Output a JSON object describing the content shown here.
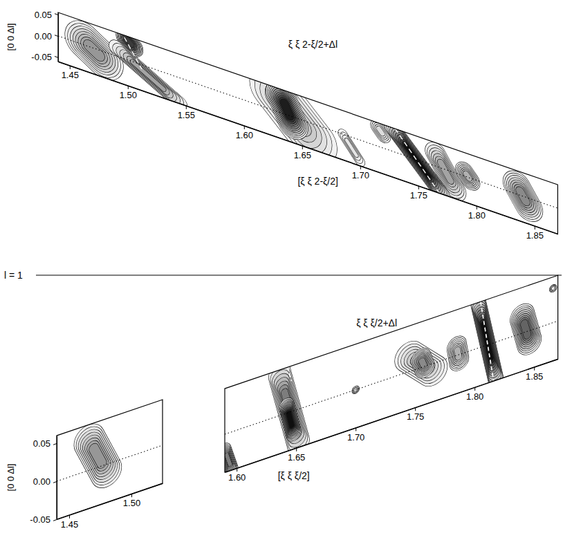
{
  "figure": {
    "label": "l = 1"
  },
  "chart_data": [
    {
      "type": "contour",
      "title": "ξ ξ 2-ξ/2+Δl",
      "x_label": "[ξ ξ 2-ξ/2]",
      "y_label": "[0 0 Δl]",
      "xlim": [
        1.44,
        1.87
      ],
      "ylim": [
        -0.06,
        0.055
      ],
      "xticks": [
        1.45,
        {
          "value": 1.5,
          "label": "1.50"
        },
        1.55,
        {
          "value": 1.6,
          "label": "1.60"
        },
        1.65,
        {
          "value": 1.7,
          "label": "1.70"
        },
        1.75,
        {
          "value": 1.8,
          "label": "1.80"
        },
        1.85
      ],
      "yticks": [
        -0.05,
        {
          "value": 0,
          "label": "0.00"
        },
        0.05
      ],
      "features": [
        {
          "xi": [
            1.462,
            1.48
          ],
          "dl": [
            0.01,
            -0.02
          ],
          "half_width": 0.016,
          "intensity": 0.5
        },
        {
          "xi": [
            1.498,
            1.505
          ],
          "dl": [
            0.05,
            0.035
          ],
          "half_width": 0.008,
          "intensity": 0.85
        },
        {
          "xi": [
            1.49,
            1.545
          ],
          "dl": [
            0.02,
            -0.06
          ],
          "half_width": 0.006,
          "intensity": 0.45
        },
        {
          "xi": [
            1.625,
            1.66
          ],
          "dl": [
            0.05,
            -0.04
          ],
          "half_width": 0.02,
          "intensity": 0.35
        },
        {
          "xi": [
            1.632,
            1.642
          ],
          "dl": [
            0.04,
            -0.015
          ],
          "half_width": 0.013,
          "intensity": 0.95
        },
        {
          "xi": [
            1.685,
            1.7
          ],
          "dl": [
            0.0,
            -0.05
          ],
          "half_width": 0.004,
          "intensity": 0.15
        },
        {
          "xi": [
            1.715,
            1.72
          ],
          "dl": [
            0.045,
            0.03
          ],
          "half_width": 0.006,
          "intensity": 0.2
        },
        {
          "xi": [
            1.765,
            1.782
          ],
          "dl": [
            0.03,
            -0.04
          ],
          "half_width": 0.009,
          "intensity": 0.45
        },
        {
          "xi": [
            1.728,
            1.77
          ],
          "dl": [
            0.055,
            -0.06
          ],
          "half_width": 0.007,
          "intensity": 1.0
        },
        {
          "xi": [
            1.79,
            1.795
          ],
          "dl": [
            0.01,
            -0.005
          ],
          "half_width": 0.008,
          "intensity": 0.4
        },
        {
          "xi": [
            1.835,
            1.845
          ],
          "dl": [
            0.02,
            -0.02
          ],
          "half_width": 0.012,
          "intensity": 0.55
        }
      ],
      "lines": [
        {
          "xi": [
            1.44,
            1.87
          ],
          "dl": [
            0,
            0
          ],
          "line_style": "dotted",
          "color": "#000000"
        },
        {
          "xi": [
            1.497,
            1.512
          ],
          "dl": [
            0.05,
            -0.01
          ],
          "line_style": "dashed",
          "color": "#ffffff"
        },
        {
          "xi": [
            1.73,
            1.768
          ],
          "dl": [
            0.055,
            -0.06
          ],
          "line_style": "dashed",
          "color": "#ffffff"
        }
      ]
    },
    {
      "type": "contour",
      "title": "ξ ξ ξ/2+Δl",
      "x_label": "[ξ ξ ξ/2]",
      "xlim": [
        1.59,
        1.87
      ],
      "ylim": [
        -0.05,
        0.06
      ],
      "tick_labels": "x",
      "xticks": [
        {
          "value": 1.6,
          "label": "1.60"
        },
        1.65,
        {
          "value": 1.7,
          "label": "1.70"
        },
        1.75,
        {
          "value": 1.8,
          "label": "1.80"
        },
        1.85
      ],
      "features": [
        {
          "xi": [
            1.59,
            1.596
          ],
          "dl": [
            -0.02,
            -0.05
          ],
          "half_width": 0.005,
          "intensity": 0.6
        },
        {
          "xi": [
            1.636,
            1.652
          ],
          "dl": [
            0.055,
            -0.045
          ],
          "half_width": 0.009,
          "intensity": 0.6
        },
        {
          "xi": [
            1.642,
            1.648
          ],
          "dl": [
            0.01,
            -0.03
          ],
          "half_width": 0.006,
          "intensity": 1.0
        },
        {
          "xi": [
            1.7,
            1.7
          ],
          "dl": [
            0.0,
            0.0
          ],
          "half_width": 0.003,
          "intensity": 0.1
        },
        {
          "xi": [
            1.745,
            1.765
          ],
          "dl": [
            0.02,
            -0.01
          ],
          "half_width": 0.012,
          "intensity": 0.35
        },
        {
          "xi": [
            1.755,
            1.758
          ],
          "dl": [
            0.012,
            -0.002
          ],
          "half_width": 0.008,
          "intensity": 0.55
        },
        {
          "xi": [
            1.785,
            1.787
          ],
          "dl": [
            0.012,
            -0.008
          ],
          "half_width": 0.008,
          "intensity": 0.4
        },
        {
          "xi": [
            1.803,
            1.818
          ],
          "dl": [
            0.06,
            -0.05
          ],
          "half_width": 0.006,
          "intensity": 1.0
        },
        {
          "xi": [
            1.84,
            1.846
          ],
          "dl": [
            0.022,
            -0.015
          ],
          "half_width": 0.01,
          "intensity": 0.7
        },
        {
          "xi": [
            1.866,
            1.866
          ],
          "dl": [
            0.045,
            0.045
          ],
          "half_width": 0.003,
          "intensity": 0.1
        }
      ],
      "lines": [
        {
          "xi": [
            1.59,
            1.87
          ],
          "dl": [
            0,
            0
          ],
          "line_style": "dotted",
          "color": "#000000"
        },
        {
          "xi": [
            1.805,
            1.816
          ],
          "dl": [
            0.06,
            -0.05
          ],
          "line_style": "dashed",
          "color": "#ffffff"
        },
        {
          "xi": [
            1.643,
            1.646
          ],
          "dl": [
            0.06,
            0.04
          ],
          "line_style": "dashed",
          "color": "#ffffff"
        }
      ]
    },
    {
      "type": "contour",
      "y_label": "[0 0 Δl]",
      "xlim": [
        1.44,
        1.525
      ],
      "ylim": [
        -0.05,
        0.06
      ],
      "xticks": [
        1.45,
        {
          "value": 1.5,
          "label": "1.50"
        }
      ],
      "yticks": [
        -0.05,
        {
          "value": 0,
          "label": "0.00"
        },
        0.05
      ],
      "features": [
        {
          "xi": [
            1.466,
            1.48
          ],
          "dl": [
            0.04,
            -0.01
          ],
          "half_width": 0.012,
          "intensity": 0.5
        }
      ],
      "lines": [
        {
          "xi": [
            1.44,
            1.525
          ],
          "dl": [
            0,
            0
          ],
          "line_style": "dotted",
          "color": "#000000"
        }
      ]
    }
  ]
}
